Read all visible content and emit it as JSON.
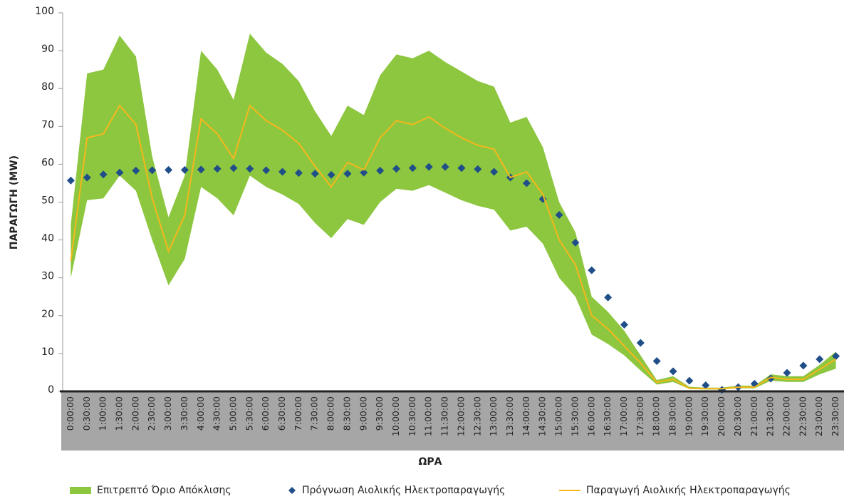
{
  "chart_data": {
    "type": "line",
    "xlabel": "ΩΡΑ",
    "ylabel": "ΠΑΡΑΓΩΓΗ (MW)",
    "categories": [
      "0:00:00",
      "0:30:00",
      "1:00:00",
      "1:30:00",
      "2:00:00",
      "2:30:00",
      "3:00:00",
      "3:30:00",
      "4:00:00",
      "4:30:00",
      "5:00:00",
      "5:30:00",
      "6:00:00",
      "6:30:00",
      "7:00:00",
      "7:30:00",
      "8:00:00",
      "8:30:00",
      "9:00:00",
      "9:30:00",
      "10:00:00",
      "10:30:00",
      "11:00:00",
      "11:30:00",
      "12:00:00",
      "12:30:00",
      "13:00:00",
      "13:30:00",
      "14:00:00",
      "14:30:00",
      "15:00:00",
      "15:30:00",
      "16:00:00",
      "16:30:00",
      "17:00:00",
      "17:30:00",
      "18:00:00",
      "18:30:00",
      "19:00:00",
      "19:30:00",
      "20:00:00",
      "20:30:00",
      "21:00:00",
      "21:30:00",
      "22:00:00",
      "22:30:00",
      "23:00:00",
      "23:30:00"
    ],
    "ylim": [
      0,
      100
    ],
    "yticks": [
      0,
      10,
      20,
      30,
      40,
      50,
      60,
      70,
      80,
      90,
      100
    ],
    "series": [
      {
        "name": "Επιτρεπτό Όριο Απόκλισης",
        "color": "#8dc63f",
        "kind": "band",
        "upper": [
          44,
          84,
          85,
          94,
          88.5,
          62,
          46,
          57,
          90,
          85,
          77,
          94.5,
          89.5,
          86.5,
          82,
          74,
          67.5,
          75.5,
          73,
          83.5,
          89,
          88,
          90,
          87,
          84.5,
          82,
          80.5,
          71,
          72.5,
          64.5,
          50,
          42,
          25,
          21,
          16,
          9.5,
          3,
          4,
          1.2,
          1,
          1,
          1.5,
          1.5,
          4.5,
          4,
          4,
          7,
          10.5
        ],
        "lower": [
          30,
          50.5,
          51,
          57,
          53,
          40,
          28,
          35,
          54,
          51,
          46.5,
          57,
          54,
          52,
          49.5,
          44.5,
          40.5,
          45.5,
          44,
          50,
          53.5,
          53,
          54.5,
          52.5,
          50.5,
          49,
          48,
          42.5,
          43.5,
          39,
          30,
          25,
          15,
          12.5,
          9.5,
          5.5,
          1.8,
          2.5,
          0.6,
          0.5,
          0.5,
          0.8,
          0.8,
          2.8,
          2.5,
          2.5,
          4.5,
          6
        ]
      },
      {
        "name": "Πρόγνωση Αιολικής Ηλεκτροπαραγωγής",
        "color": "#1f4e89",
        "kind": "marker",
        "values": [
          55.7,
          56.5,
          57.3,
          57.8,
          58.3,
          58.4,
          58.5,
          58.5,
          58.6,
          58.8,
          59,
          58.8,
          58.4,
          58,
          57.7,
          57.5,
          57.2,
          57.5,
          57.8,
          58.3,
          58.8,
          59,
          59.3,
          59.3,
          59,
          58.7,
          58,
          56.5,
          55,
          50.8,
          46.6,
          39.3,
          32,
          24.8,
          17.6,
          12.8,
          8,
          5.3,
          2.8,
          1.6,
          0.4,
          1.1,
          2,
          3.4,
          4.9,
          6.8,
          8.5,
          9.3
        ]
      },
      {
        "name": "Παραγωγή Αιολικής Ηλεκτροπαραγωγής",
        "color": "#f5b81c",
        "kind": "line",
        "values": [
          34.5,
          67,
          68,
          75.5,
          70.5,
          51,
          37,
          46.5,
          72,
          68,
          61.5,
          75.5,
          71.5,
          69,
          65.5,
          59.5,
          54,
          60.5,
          58.5,
          67,
          71.5,
          70.5,
          72.5,
          69.5,
          67,
          65,
          64,
          56.5,
          58,
          52,
          40,
          33.5,
          20,
          16.5,
          12,
          7.5,
          2.4,
          3.2,
          0.8,
          0.7,
          0.7,
          1.1,
          1.1,
          3.7,
          3.2,
          3.2,
          5.8,
          8.5
        ]
      }
    ]
  }
}
